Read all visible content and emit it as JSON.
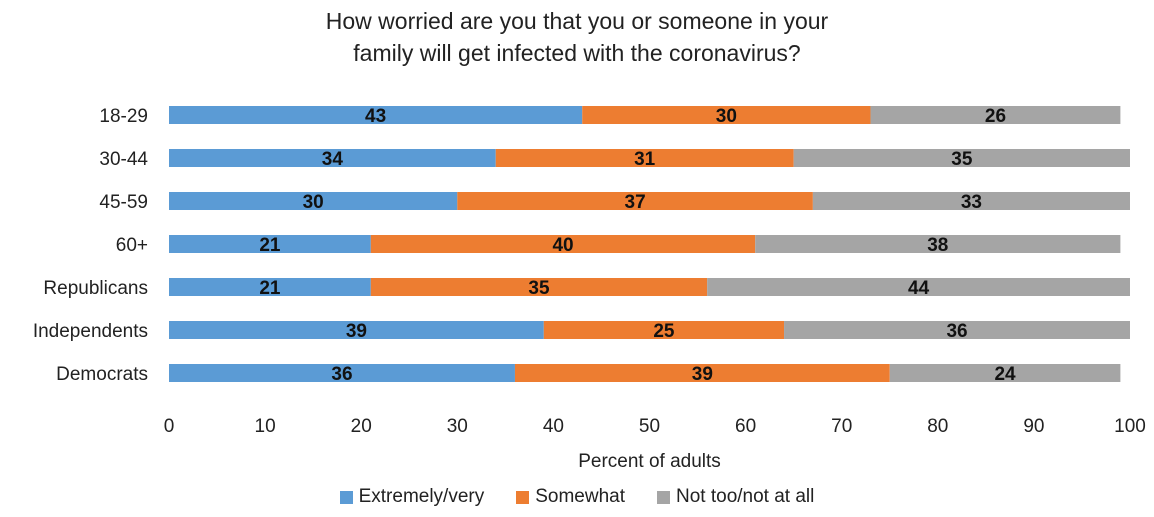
{
  "chart_data": {
    "type": "bar",
    "orientation": "horizontal",
    "stacked": true,
    "title_line1": "How worried are you that you or someone in your",
    "title_line2": "family will get infected with the coronavirus?",
    "xlabel": "Percent of adults",
    "ylabel": "",
    "xlim": [
      0,
      100
    ],
    "xticks": [
      0,
      10,
      20,
      30,
      40,
      50,
      60,
      70,
      80,
      90,
      100
    ],
    "categories": [
      "18-29",
      "30-44",
      "45-59",
      "60+",
      "Republicans",
      "Independents",
      "Democrats"
    ],
    "series": [
      {
        "name": "Extremely/very",
        "color": "#5b9bd5",
        "values": [
          43,
          34,
          30,
          21,
          21,
          39,
          36
        ]
      },
      {
        "name": "Somewhat",
        "color": "#ed7d31",
        "values": [
          30,
          31,
          37,
          40,
          35,
          25,
          39
        ]
      },
      {
        "name": "Not too/not at all",
        "color": "#a5a5a5",
        "values": [
          26,
          35,
          33,
          38,
          44,
          36,
          24
        ]
      }
    ],
    "grid": false,
    "legend_position": "bottom"
  }
}
